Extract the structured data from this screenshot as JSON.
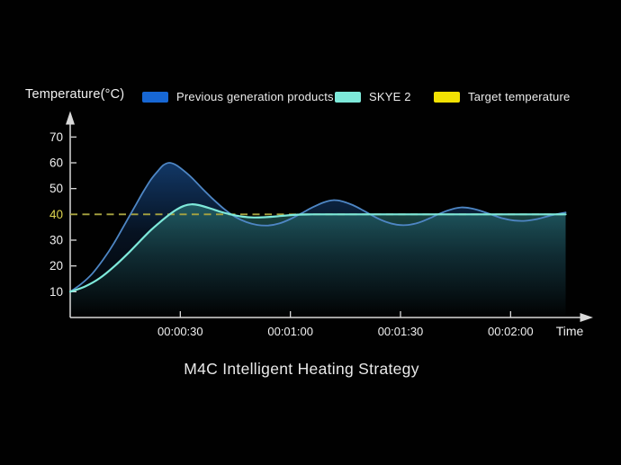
{
  "y_axis_title": "Temperature(°C)",
  "legend": [
    {
      "label": "Previous generation products",
      "color": "#1767d4"
    },
    {
      "label": "SKYE 2",
      "color": "#7ee9da"
    },
    {
      "label": "Target temperature",
      "color": "#f2e203"
    }
  ],
  "title": "M4C Intelligent Heating Strategy",
  "chart_data": {
    "type": "line",
    "title": "M4C Intelligent Heating Strategy",
    "xlabel": "Time",
    "ylabel": "Temperature(°C)",
    "x_unit": "seconds",
    "xlim": [
      0,
      140
    ],
    "ylim": [
      0,
      77
    ],
    "grid": false,
    "legend_position": "top",
    "background": "#010101",
    "axis_color": "#d9d9d9",
    "tick_label_color": "#f0f0f0",
    "x_ticks": [
      {
        "value": 30,
        "label": "00:00:30"
      },
      {
        "value": 60,
        "label": "00:01:00"
      },
      {
        "value": 90,
        "label": "00:01:30"
      },
      {
        "value": 120,
        "label": "00:02:00"
      }
    ],
    "y_ticks": [
      10,
      20,
      30,
      40,
      50,
      60,
      70
    ],
    "target": {
      "value": 40,
      "line_color": "#a8a440",
      "tick_label_color": "#ddd44e",
      "style": "dashed",
      "label": "Target temperature"
    },
    "series": [
      {
        "name": "Previous generation products",
        "line_color": "#4e86c4",
        "fill_color": "#16457f",
        "points": [
          [
            0,
            10
          ],
          [
            3,
            13
          ],
          [
            6,
            17
          ],
          [
            9,
            22.5
          ],
          [
            12,
            29
          ],
          [
            15,
            36.5
          ],
          [
            18,
            44
          ],
          [
            20,
            49
          ],
          [
            22,
            53.5
          ],
          [
            24,
            57
          ],
          [
            25.5,
            59.2
          ],
          [
            27,
            60
          ],
          [
            28.5,
            59.4
          ],
          [
            30,
            58
          ],
          [
            33,
            54.4
          ],
          [
            36,
            50
          ],
          [
            39,
            45.8
          ],
          [
            42,
            42
          ],
          [
            45,
            39
          ],
          [
            48,
            37
          ],
          [
            51,
            35.9
          ],
          [
            54,
            35.7
          ],
          [
            57,
            36.5
          ],
          [
            60,
            38.2
          ],
          [
            63,
            40.4
          ],
          [
            66,
            42.7
          ],
          [
            69,
            44.6
          ],
          [
            71.5,
            45.5
          ],
          [
            74,
            45.1
          ],
          [
            77,
            43.6
          ],
          [
            80,
            41.4
          ],
          [
            83,
            39
          ],
          [
            86,
            37.1
          ],
          [
            89,
            36
          ],
          [
            92,
            35.9
          ],
          [
            95,
            36.8
          ],
          [
            98,
            38.5
          ],
          [
            101,
            40.5
          ],
          [
            104,
            42
          ],
          [
            106.5,
            42.7
          ],
          [
            109,
            42.4
          ],
          [
            112,
            41.3
          ],
          [
            115,
            39.8
          ],
          [
            118,
            38.4
          ],
          [
            121,
            37.6
          ],
          [
            124,
            37.5
          ],
          [
            127,
            38.1
          ],
          [
            130,
            39.2
          ],
          [
            133,
            40.2
          ],
          [
            135,
            40.7
          ]
        ]
      },
      {
        "name": "SKYE 2",
        "line_color": "#7ee9da",
        "fill_color": "#2e7f7b",
        "points": [
          [
            0,
            10
          ],
          [
            4,
            12
          ],
          [
            8,
            15.2
          ],
          [
            12,
            19.8
          ],
          [
            16,
            25.2
          ],
          [
            19,
            29.6
          ],
          [
            22,
            33.9
          ],
          [
            25,
            37.6
          ],
          [
            27,
            39.9
          ],
          [
            29,
            41.9
          ],
          [
            31,
            43.3
          ],
          [
            33,
            43.9
          ],
          [
            35,
            43.6
          ],
          [
            38,
            42.4
          ],
          [
            41,
            41
          ],
          [
            44,
            39.9
          ],
          [
            47,
            39.1
          ],
          [
            50,
            38.8
          ],
          [
            53,
            38.9
          ],
          [
            56,
            39.2
          ],
          [
            59,
            39.6
          ],
          [
            62,
            39.9
          ],
          [
            66,
            40
          ],
          [
            75,
            40
          ],
          [
            85,
            40
          ],
          [
            95,
            40
          ],
          [
            105,
            40
          ],
          [
            115,
            40
          ],
          [
            125,
            40
          ],
          [
            135,
            40
          ]
        ]
      }
    ]
  }
}
